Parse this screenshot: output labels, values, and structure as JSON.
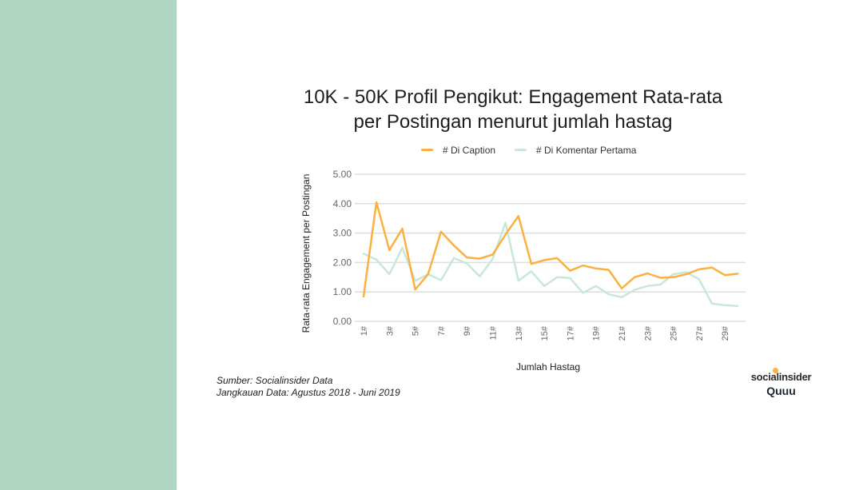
{
  "colors": {
    "side_panel": "#b0d6c3",
    "series_caption": "#fbb040",
    "series_comment": "#c9e7d8",
    "grid": "#dddddd",
    "brand_dot": "#fbb040"
  },
  "slide": {
    "title_line1": "10K - 50K Profil Pengikut: Engagement Rata-rata",
    "title_line2": "per Postingan menurut jumlah hastag",
    "source_line1": "Sumber: Socialinsider Data",
    "source_line2": "Jangkauan Data: Agustus 2018 - Juni 2019",
    "brand_socialinsider": "socialinsider",
    "brand_quuu": "Quuu"
  },
  "chart_data": {
    "type": "line",
    "title": "10K - 50K Profil Pengikut: Engagement Rata-rata per Postingan menurut jumlah hastag",
    "xlabel": "Jumlah Hastag",
    "ylabel": "Rata-rata Engagement  per Postingan",
    "ylim": [
      0,
      5
    ],
    "y_ticks": [
      "0.00",
      "1.00",
      "2.00",
      "3.00",
      "4.00",
      "5.00"
    ],
    "x_tick_labels": [
      "1#",
      "3#",
      "5#",
      "7#",
      "9#",
      "11#",
      "13#",
      "15#",
      "17#",
      "19#",
      "21#",
      "23#",
      "25#",
      "27#",
      "29#"
    ],
    "x": [
      1,
      2,
      3,
      4,
      5,
      6,
      7,
      8,
      9,
      10,
      11,
      12,
      13,
      14,
      15,
      16,
      17,
      18,
      19,
      20,
      21,
      22,
      23,
      24,
      25,
      26,
      27,
      28,
      29,
      30
    ],
    "grid": true,
    "legend_position": "top",
    "series": [
      {
        "name": "# Di Caption",
        "color": "#fbb040",
        "values": [
          0.85,
          4.05,
          2.42,
          3.15,
          1.08,
          1.6,
          3.05,
          2.58,
          2.17,
          2.13,
          2.27,
          2.95,
          3.58,
          1.95,
          2.08,
          2.15,
          1.72,
          1.9,
          1.8,
          1.75,
          1.12,
          1.5,
          1.63,
          1.48,
          1.5,
          1.6,
          1.77,
          1.83,
          1.57,
          1.62
        ]
      },
      {
        "name": "# Di Komentar Pertama",
        "color": "#c9e7d8",
        "values": [
          2.3,
          2.1,
          1.6,
          2.5,
          1.38,
          1.6,
          1.4,
          2.15,
          1.97,
          1.53,
          2.12,
          3.35,
          1.38,
          1.7,
          1.2,
          1.5,
          1.47,
          0.97,
          1.2,
          0.92,
          0.82,
          1.07,
          1.2,
          1.25,
          1.6,
          1.67,
          1.43,
          0.6,
          0.55,
          0.52
        ]
      }
    ]
  }
}
